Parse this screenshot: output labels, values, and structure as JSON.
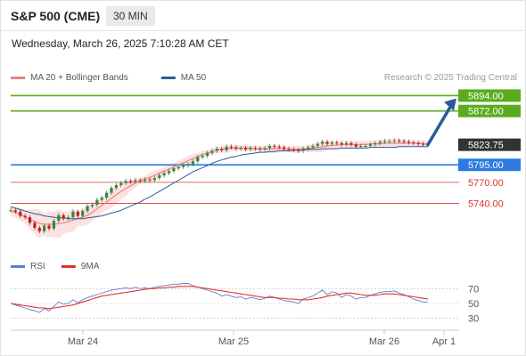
{
  "header": {
    "title": "S&P 500 (CME)",
    "timeframe": "30 MIN"
  },
  "timestamp": "Wednesday, March 26, 2025 7:10:28 AM CET",
  "credit": "Research © 2025 Trading Central",
  "colors": {
    "resistance": "#5aac1e",
    "pivot": "#2b7be0",
    "support": "#e0322b",
    "price_label": "#333333",
    "ma20": "#f08080",
    "ma50": "#2a5a9a",
    "band_fill": "#fbd9d9",
    "candle_up": "#2f8a3e",
    "candle_down": "#b22222",
    "arrow": "#2a5a9a",
    "rsi": "#5b7fd0",
    "rsi_ma": "#e0322b"
  },
  "chart_data": [
    {
      "type": "line",
      "name": "price",
      "legend": [
        {
          "label": "MA 20 + Bollinger Bands",
          "color": "#f08080"
        },
        {
          "label": "MA 50",
          "color": "#2a5a9a"
        }
      ],
      "x_ticks": [
        "Mar 24",
        "Mar 25",
        "Mar 26",
        "Apr 1"
      ],
      "ylim": [
        5668,
        5906
      ],
      "levels": [
        {
          "label": "5894.00",
          "value": 5894,
          "kind": "resistance"
        },
        {
          "label": "5872.00",
          "value": 5872,
          "kind": "resistance"
        },
        {
          "label": "5823.75",
          "value": 5823.75,
          "kind": "price"
        },
        {
          "label": "5795.00",
          "value": 5795,
          "kind": "pivot"
        },
        {
          "label": "5770.00",
          "value": 5770,
          "kind": "support"
        },
        {
          "label": "5740.00",
          "value": 5740,
          "kind": "support"
        }
      ],
      "arrow": {
        "from_value": 5823.75,
        "to_value": 5890,
        "direction": "up"
      },
      "series": [
        {
          "name": "Price",
          "values": [
            5730,
            5728,
            5722,
            5720,
            5712,
            5705,
            5700,
            5708,
            5704,
            5715,
            5723,
            5718,
            5720,
            5728,
            5722,
            5729,
            5736,
            5738,
            5745,
            5748,
            5755,
            5762,
            5766,
            5769,
            5772,
            5771,
            5773,
            5772,
            5774,
            5773,
            5776,
            5780,
            5783,
            5786,
            5790,
            5792,
            5794,
            5796,
            5800,
            5806,
            5808,
            5812,
            5815,
            5818,
            5816,
            5821,
            5820,
            5818,
            5819,
            5817,
            5819,
            5818,
            5817,
            5819,
            5822,
            5821,
            5820,
            5818,
            5817,
            5816,
            5815,
            5818,
            5820,
            5822,
            5825,
            5828,
            5825,
            5827,
            5826,
            5824,
            5826,
            5824,
            5821,
            5822,
            5822,
            5824,
            5826,
            5828,
            5829,
            5829,
            5830,
            5829,
            5828,
            5827,
            5826,
            5825,
            5824,
            5824
          ]
        },
        {
          "name": "MA 20",
          "values": [
            5729,
            5727,
            5724,
            5721,
            5717,
            5714,
            5711,
            5710,
            5710,
            5710,
            5711,
            5712,
            5714,
            5716,
            5718,
            5720,
            5723,
            5727,
            5732,
            5737,
            5742,
            5747,
            5752,
            5757,
            5761,
            5765,
            5769,
            5772,
            5775,
            5777,
            5780,
            5783,
            5786,
            5789,
            5792,
            5795,
            5798,
            5801,
            5804,
            5807,
            5810,
            5812,
            5814,
            5816,
            5817,
            5818,
            5819,
            5819,
            5819,
            5819,
            5819,
            5818,
            5818,
            5818,
            5818,
            5818,
            5818,
            5818,
            5817,
            5817,
            5817,
            5818,
            5818,
            5819,
            5820,
            5821,
            5822,
            5823,
            5823,
            5824,
            5824,
            5824,
            5824,
            5824,
            5824,
            5825,
            5825,
            5825,
            5826,
            5826,
            5826,
            5826,
            5826,
            5826,
            5826,
            5826,
            5825,
            5825
          ]
        },
        {
          "name": "MA 50",
          "values": [
            5735,
            5733,
            5731,
            5729,
            5727,
            5725,
            5724,
            5722,
            5721,
            5720,
            5719,
            5719,
            5718,
            5718,
            5718,
            5718,
            5719,
            5720,
            5721,
            5722,
            5724,
            5726,
            5728,
            5730,
            5733,
            5736,
            5739,
            5742,
            5746,
            5749,
            5753,
            5757,
            5761,
            5765,
            5769,
            5773,
            5777,
            5781,
            5785,
            5788,
            5791,
            5794,
            5797,
            5800,
            5802,
            5804,
            5806,
            5807,
            5809,
            5810,
            5811,
            5812,
            5813,
            5813,
            5814,
            5814,
            5815,
            5815,
            5815,
            5816,
            5816,
            5816,
            5817,
            5817,
            5817,
            5818,
            5818,
            5818,
            5818,
            5819,
            5819,
            5819,
            5819,
            5819,
            5819,
            5820,
            5820,
            5820,
            5820,
            5820,
            5820,
            5821,
            5821,
            5821,
            5821,
            5821,
            5821,
            5821
          ]
        }
      ]
    },
    {
      "type": "line",
      "name": "rsi",
      "legend": [
        {
          "label": "RSI",
          "color": "#5b7fd0"
        },
        {
          "label": "9MA",
          "color": "#e0322b"
        }
      ],
      "ylim": [
        20,
        80
      ],
      "y_ticks": [
        "70",
        "50",
        "30"
      ],
      "series": [
        {
          "name": "RSI",
          "values": [
            50,
            48,
            46,
            44,
            42,
            40,
            38,
            43,
            40,
            46,
            52,
            49,
            50,
            55,
            51,
            55,
            58,
            60,
            62,
            64,
            66,
            68,
            69,
            70,
            71,
            70,
            72,
            70,
            71,
            70,
            72,
            73,
            74,
            75,
            76,
            76,
            77,
            77,
            74,
            72,
            70,
            68,
            66,
            64,
            60,
            62,
            60,
            58,
            59,
            56,
            58,
            57,
            55,
            57,
            60,
            58,
            56,
            54,
            53,
            52,
            50,
            56,
            58,
            60,
            64,
            68,
            62,
            66,
            64,
            58,
            62,
            60,
            56,
            58,
            58,
            61,
            63,
            65,
            66,
            66,
            67,
            64,
            62,
            59,
            56,
            54,
            52,
            52
          ]
        },
        {
          "name": "9MA",
          "values": [
            50,
            49,
            48,
            47,
            46,
            45,
            44,
            44,
            43,
            44,
            45,
            46,
            47,
            48,
            50,
            52,
            54,
            56,
            58,
            60,
            61,
            62,
            63,
            64,
            65,
            66,
            67,
            68,
            69,
            70,
            70,
            71,
            71,
            72,
            72,
            73,
            73,
            73,
            73,
            72,
            71,
            70,
            69,
            68,
            67,
            66,
            65,
            64,
            63,
            62,
            61,
            60,
            59,
            58,
            58,
            58,
            57,
            57,
            56,
            56,
            55,
            55,
            55,
            56,
            57,
            58,
            60,
            61,
            62,
            63,
            64,
            64,
            63,
            62,
            61,
            61,
            61,
            62,
            63,
            63,
            63,
            62,
            61,
            60,
            59,
            58,
            57,
            56
          ]
        }
      ]
    }
  ]
}
